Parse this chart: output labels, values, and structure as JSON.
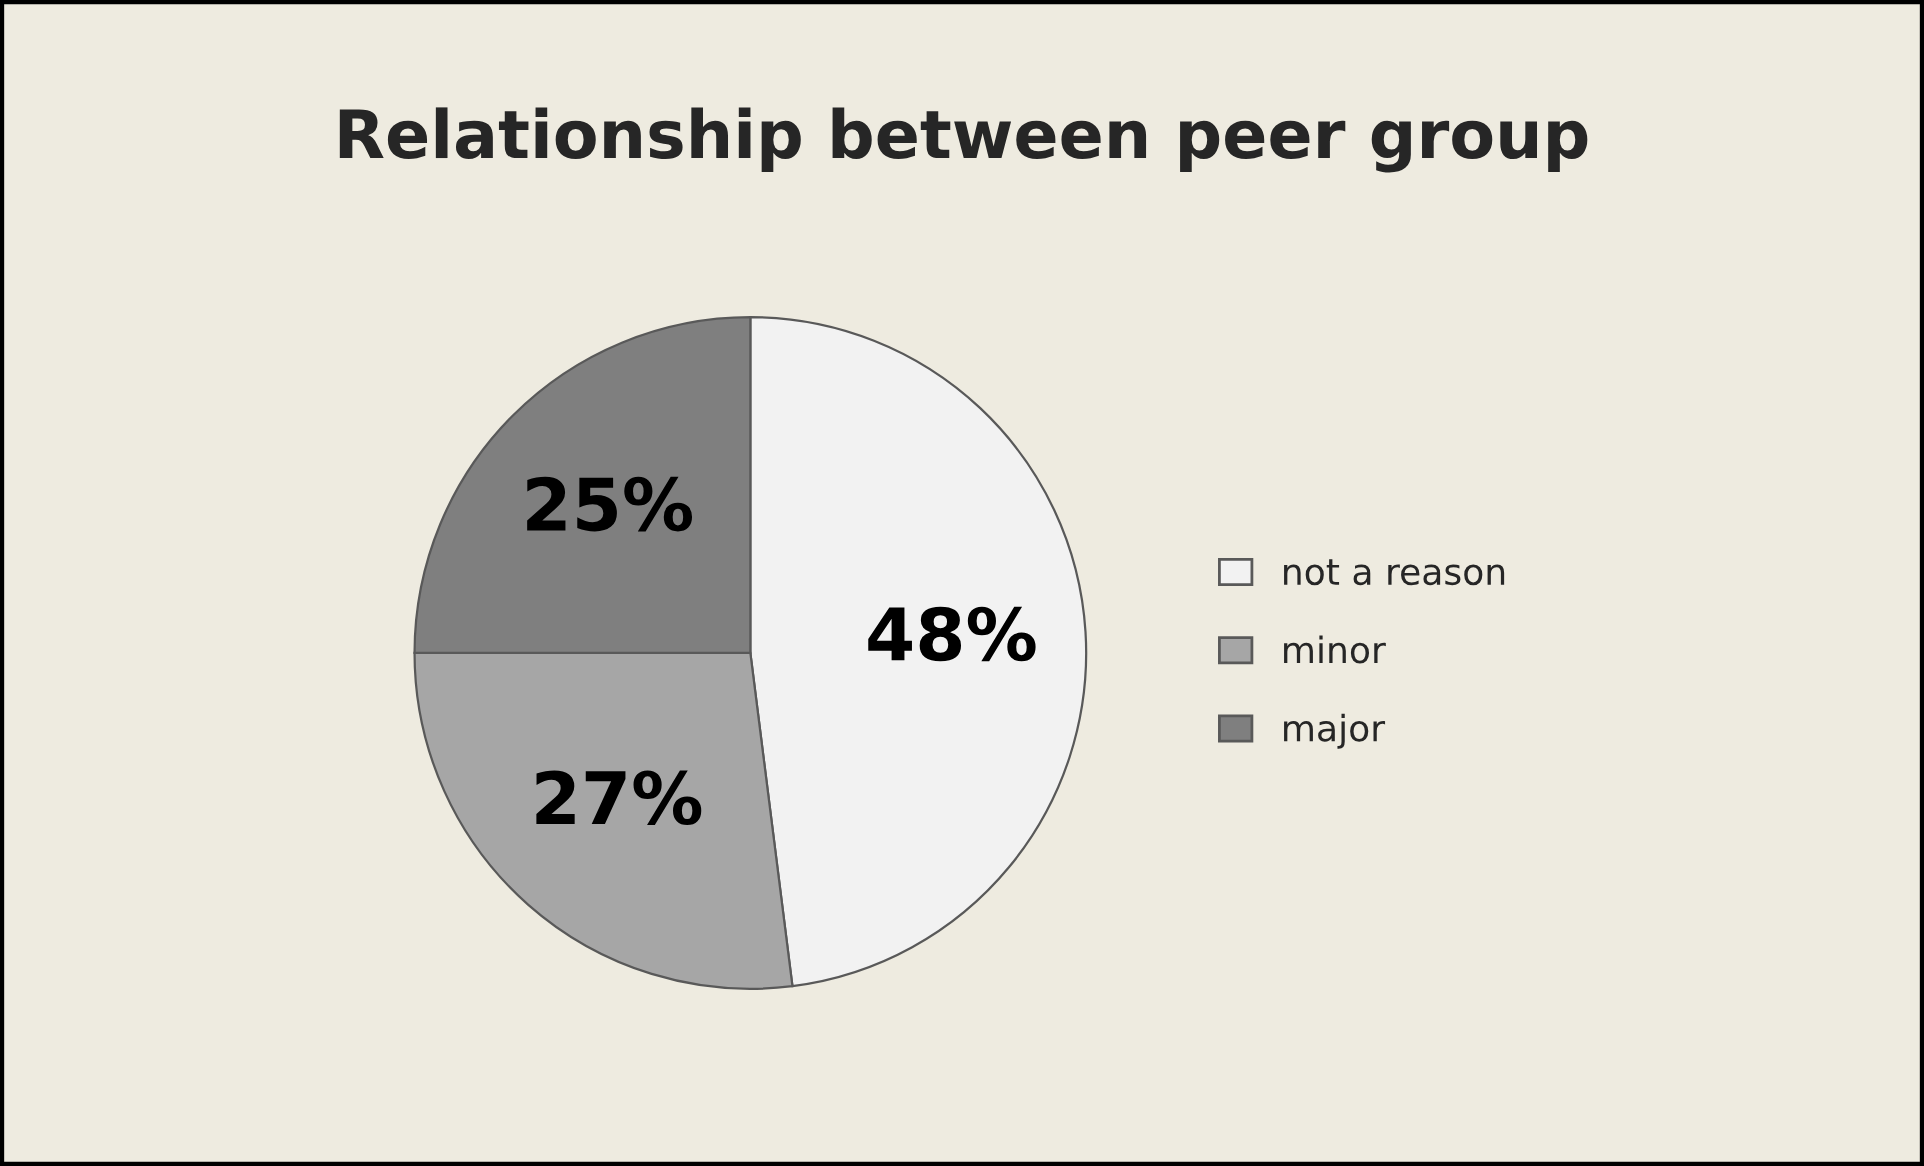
{
  "chart_data": {
    "type": "pie",
    "title": "Relationship between peer group",
    "categories": [
      "not a reason",
      "minor",
      "major"
    ],
    "values": [
      48,
      27,
      25
    ],
    "colors": [
      "#f2f2f2",
      "#a6a6a6",
      "#7f7f7f"
    ],
    "value_labels": [
      "48%",
      "27%",
      "25%"
    ],
    "legend": "right"
  }
}
